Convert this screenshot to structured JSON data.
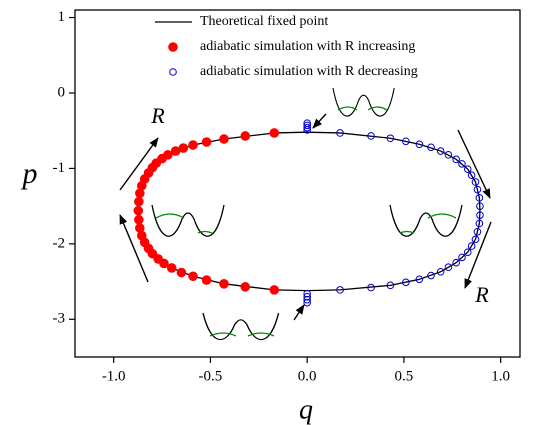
{
  "chart_data": {
    "type": "scatter",
    "x_label": "q",
    "y_label": "p",
    "xlim": [
      -1.2,
      1.1
    ],
    "ylim": [
      -3.5,
      1.1
    ],
    "xticks": [
      {
        "value": -1,
        "label": "-1.0"
      },
      {
        "value": -0.5,
        "label": "-0.5"
      },
      {
        "value": 0,
        "label": "0.0"
      },
      {
        "value": 0.5,
        "label": "0.5"
      },
      {
        "value": 1,
        "label": "1.0"
      }
    ],
    "yticks": [
      -3,
      -2,
      -1,
      0,
      1
    ],
    "grid": false,
    "legend_position": "top",
    "annotations": [
      "R",
      "R"
    ],
    "series": [
      {
        "name": "Theoretical fixed point",
        "kind": "line",
        "color": "#000000",
        "x": [
          -0.873,
          -0.865,
          -0.84,
          -0.8,
          -0.75,
          -0.68,
          -0.59,
          -0.43,
          -0.17,
          0,
          0.17,
          0.43,
          0.58,
          0.69,
          0.77,
          0.83,
          0.87,
          0.89,
          0.893,
          0.89,
          0.87,
          0.83,
          0.77,
          0.69,
          0.58,
          0.43,
          0.17,
          0,
          -0.17,
          -0.43,
          -0.59,
          -0.7,
          -0.77,
          -0.82,
          -0.855,
          -0.87,
          -0.873
        ],
        "y": [
          -1.56,
          -1.33,
          -1.14,
          -0.99,
          -0.87,
          -0.77,
          -0.69,
          -0.61,
          -0.53,
          -0.52,
          -0.53,
          -0.6,
          -0.68,
          -0.77,
          -0.88,
          -1.01,
          -1.18,
          -1.39,
          -1.56,
          -1.73,
          -1.94,
          -2.11,
          -2.25,
          -2.37,
          -2.47,
          -2.55,
          -2.61,
          -2.62,
          -2.61,
          -2.53,
          -2.43,
          -2.32,
          -2.2,
          -2.06,
          -1.89,
          -1.68,
          -1.56
        ]
      },
      {
        "name": "adiabatic simulation with R increasing",
        "kind": "filled",
        "color": "#ff0000",
        "x": [
          -0.17,
          -0.32,
          -0.43,
          -0.52,
          -0.59,
          -0.64,
          -0.68,
          -0.72,
          -0.75,
          -0.78,
          -0.8,
          -0.82,
          -0.84,
          -0.855,
          -0.865,
          -0.87,
          -0.873,
          -0.87,
          -0.865,
          -0.855,
          -0.84,
          -0.82,
          -0.8,
          -0.77,
          -0.74,
          -0.7,
          -0.65,
          -0.59,
          -0.52,
          -0.43,
          -0.32,
          -0.17
        ],
        "y": [
          -0.53,
          -0.57,
          -0.61,
          -0.65,
          -0.69,
          -0.73,
          -0.77,
          -0.82,
          -0.87,
          -0.93,
          -0.99,
          -1.06,
          -1.14,
          -1.23,
          -1.33,
          -1.44,
          -1.56,
          -1.68,
          -1.79,
          -1.89,
          -1.98,
          -2.06,
          -2.13,
          -2.2,
          -2.26,
          -2.32,
          -2.38,
          -2.43,
          -2.48,
          -2.53,
          -2.57,
          -2.61
        ]
      },
      {
        "name": "adiabatic simulation with R decreasing",
        "kind": "open",
        "color": "#0000cc",
        "x": [
          0.17,
          0.33,
          0.43,
          0.51,
          0.58,
          0.64,
          0.69,
          0.73,
          0.77,
          0.8,
          0.83,
          0.85,
          0.87,
          0.88,
          0.89,
          0.893,
          0.893,
          0.89,
          0.88,
          0.87,
          0.85,
          0.83,
          0.8,
          0.77,
          0.73,
          0.69,
          0.64,
          0.58,
          0.51,
          0.43,
          0.33,
          0.17,
          0,
          0,
          0,
          0,
          0,
          0,
          0,
          0
        ],
        "y": [
          -0.53,
          -0.57,
          -0.6,
          -0.64,
          -0.68,
          -0.72,
          -0.77,
          -0.82,
          -0.88,
          -0.94,
          -1.01,
          -1.09,
          -1.18,
          -1.28,
          -1.39,
          -1.5,
          -1.62,
          -1.73,
          -1.84,
          -1.94,
          -2.03,
          -2.11,
          -2.18,
          -2.25,
          -2.31,
          -2.37,
          -2.42,
          -2.47,
          -2.51,
          -2.55,
          -2.58,
          -2.61,
          -0.4,
          -0.43,
          -0.46,
          -0.49,
          -2.66,
          -2.7,
          -2.74,
          -2.78
        ]
      }
    ]
  }
}
